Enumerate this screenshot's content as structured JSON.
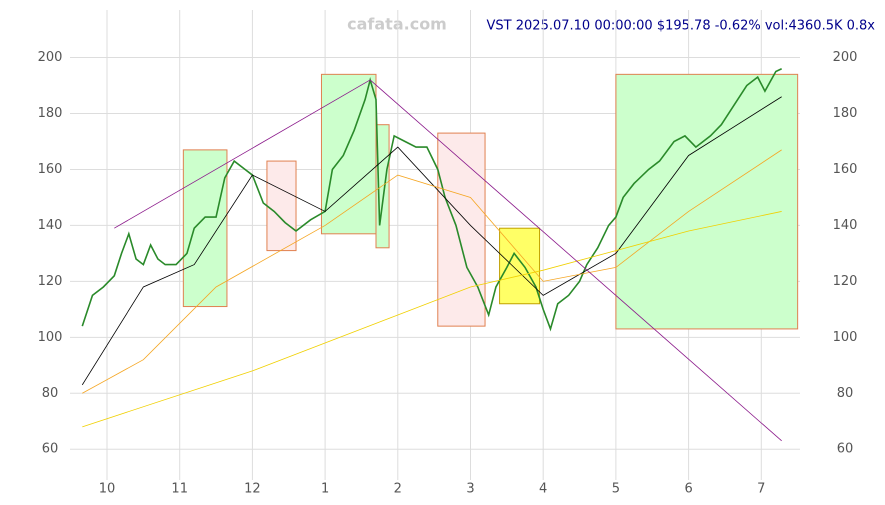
{
  "chart_data": {
    "type": "line",
    "watermark": "cafata.com",
    "title": "VST 2025.07.10 00:00:00 $195.78 -0.62% vol:4360.5K 0.8x",
    "xlim": [
      -0.5,
      9.6
    ],
    "ylim": [
      49,
      217
    ],
    "xticks": [
      {
        "value": 0,
        "label": "10"
      },
      {
        "value": 1,
        "label": "11"
      },
      {
        "value": 2,
        "label": "12"
      },
      {
        "value": 3,
        "label": "1"
      },
      {
        "value": 4,
        "label": "2"
      },
      {
        "value": 5,
        "label": "3"
      },
      {
        "value": 6,
        "label": "4"
      },
      {
        "value": 7,
        "label": "5"
      },
      {
        "value": 8,
        "label": "6"
      },
      {
        "value": 9,
        "label": "7"
      }
    ],
    "yticks": [
      60,
      80,
      100,
      120,
      140,
      160,
      180,
      200
    ],
    "grid": true,
    "zones": [
      {
        "x": [
          1.05,
          1.65
        ],
        "y": [
          111,
          167
        ],
        "color": "#ccffcc",
        "edge": "#e08050"
      },
      {
        "x": [
          2.2,
          2.6
        ],
        "y": [
          131,
          163
        ],
        "color": "#fdeaea",
        "edge": "#e08050"
      },
      {
        "x": [
          2.95,
          3.7
        ],
        "y": [
          137,
          194
        ],
        "color": "#ccffcc",
        "edge": "#e08050"
      },
      {
        "x": [
          3.7,
          3.88
        ],
        "y": [
          132,
          176
        ],
        "color": "#ccffcc",
        "edge": "#e08050"
      },
      {
        "x": [
          4.55,
          5.2
        ],
        "y": [
          104,
          173
        ],
        "color": "#fdeaea",
        "edge": "#e08050"
      },
      {
        "x": [
          5.4,
          5.95
        ],
        "y": [
          112,
          139
        ],
        "color": "#ffff66",
        "edge": "#c0a000"
      },
      {
        "x": [
          7.0,
          9.5
        ],
        "y": [
          103,
          194
        ],
        "color": "#ccffcc",
        "edge": "#e08050"
      }
    ],
    "series": [
      {
        "color": "#2a8a2a",
        "width": 1.6,
        "x": [
          -0.34,
          -0.2,
          -0.05,
          0.1,
          0.2,
          0.3,
          0.4,
          0.5,
          0.6,
          0.7,
          0.8,
          0.95,
          1.1,
          1.2,
          1.35,
          1.5,
          1.62,
          1.75,
          1.9,
          2.0,
          2.15,
          2.3,
          2.45,
          2.6,
          2.8,
          3.0,
          3.1,
          3.25,
          3.4,
          3.55,
          3.62,
          3.7,
          3.75,
          3.85,
          3.95,
          4.1,
          4.25,
          4.4,
          4.55,
          4.65,
          4.8,
          4.95,
          5.1,
          5.25,
          5.35,
          5.5,
          5.6,
          5.75,
          5.9,
          6.0,
          6.1,
          6.2,
          6.35,
          6.5,
          6.6,
          6.75,
          6.9,
          7.0,
          7.1,
          7.25,
          7.45,
          7.6,
          7.8,
          7.95,
          8.1,
          8.3,
          8.45,
          8.6,
          8.8,
          8.95,
          9.05,
          9.2,
          9.28
        ],
        "values": [
          104,
          115,
          118,
          122,
          130,
          137,
          128,
          126,
          133,
          128,
          126,
          126,
          130,
          139,
          143,
          143,
          157,
          163,
          160,
          158,
          148,
          145,
          141,
          138,
          142,
          145,
          160,
          165,
          174,
          185,
          192,
          185,
          140,
          160,
          172,
          170,
          168,
          168,
          160,
          150,
          140,
          125,
          118,
          108,
          118,
          125,
          130,
          125,
          118,
          110,
          103,
          112,
          115,
          120,
          126,
          132,
          140,
          143,
          150,
          155,
          160,
          163,
          170,
          172,
          168,
          172,
          176,
          182,
          190,
          193,
          188,
          195,
          196
        ]
      },
      {
        "color": "#000000",
        "width": 0.8,
        "x": [
          -0.34,
          0.5,
          1.2,
          2,
          3,
          4,
          5,
          6,
          7,
          8,
          9.28
        ],
        "values": [
          83,
          118,
          126,
          158,
          145,
          168,
          140,
          115,
          130,
          165,
          186
        ]
      },
      {
        "color": "#f5a623",
        "width": 0.8,
        "x": [
          -0.34,
          0.5,
          1.5,
          3,
          4,
          5,
          6,
          7,
          8,
          9.28
        ],
        "values": [
          80,
          92,
          118,
          140,
          158,
          150,
          120,
          125,
          145,
          167
        ]
      },
      {
        "color": "#f0d000",
        "width": 0.8,
        "x": [
          -0.34,
          2,
          4,
          5,
          6,
          8,
          9.28
        ],
        "values": [
          68,
          88,
          108,
          118,
          124,
          138,
          145
        ]
      },
      {
        "color": "#8b1a8b",
        "width": 0.8,
        "x": [
          3.62,
          9.28
        ],
        "values": [
          192,
          63
        ]
      },
      {
        "color": "#8b1a8b",
        "width": 0.8,
        "x": [
          0.1,
          3.62
        ],
        "values": [
          139,
          192
        ]
      }
    ]
  }
}
